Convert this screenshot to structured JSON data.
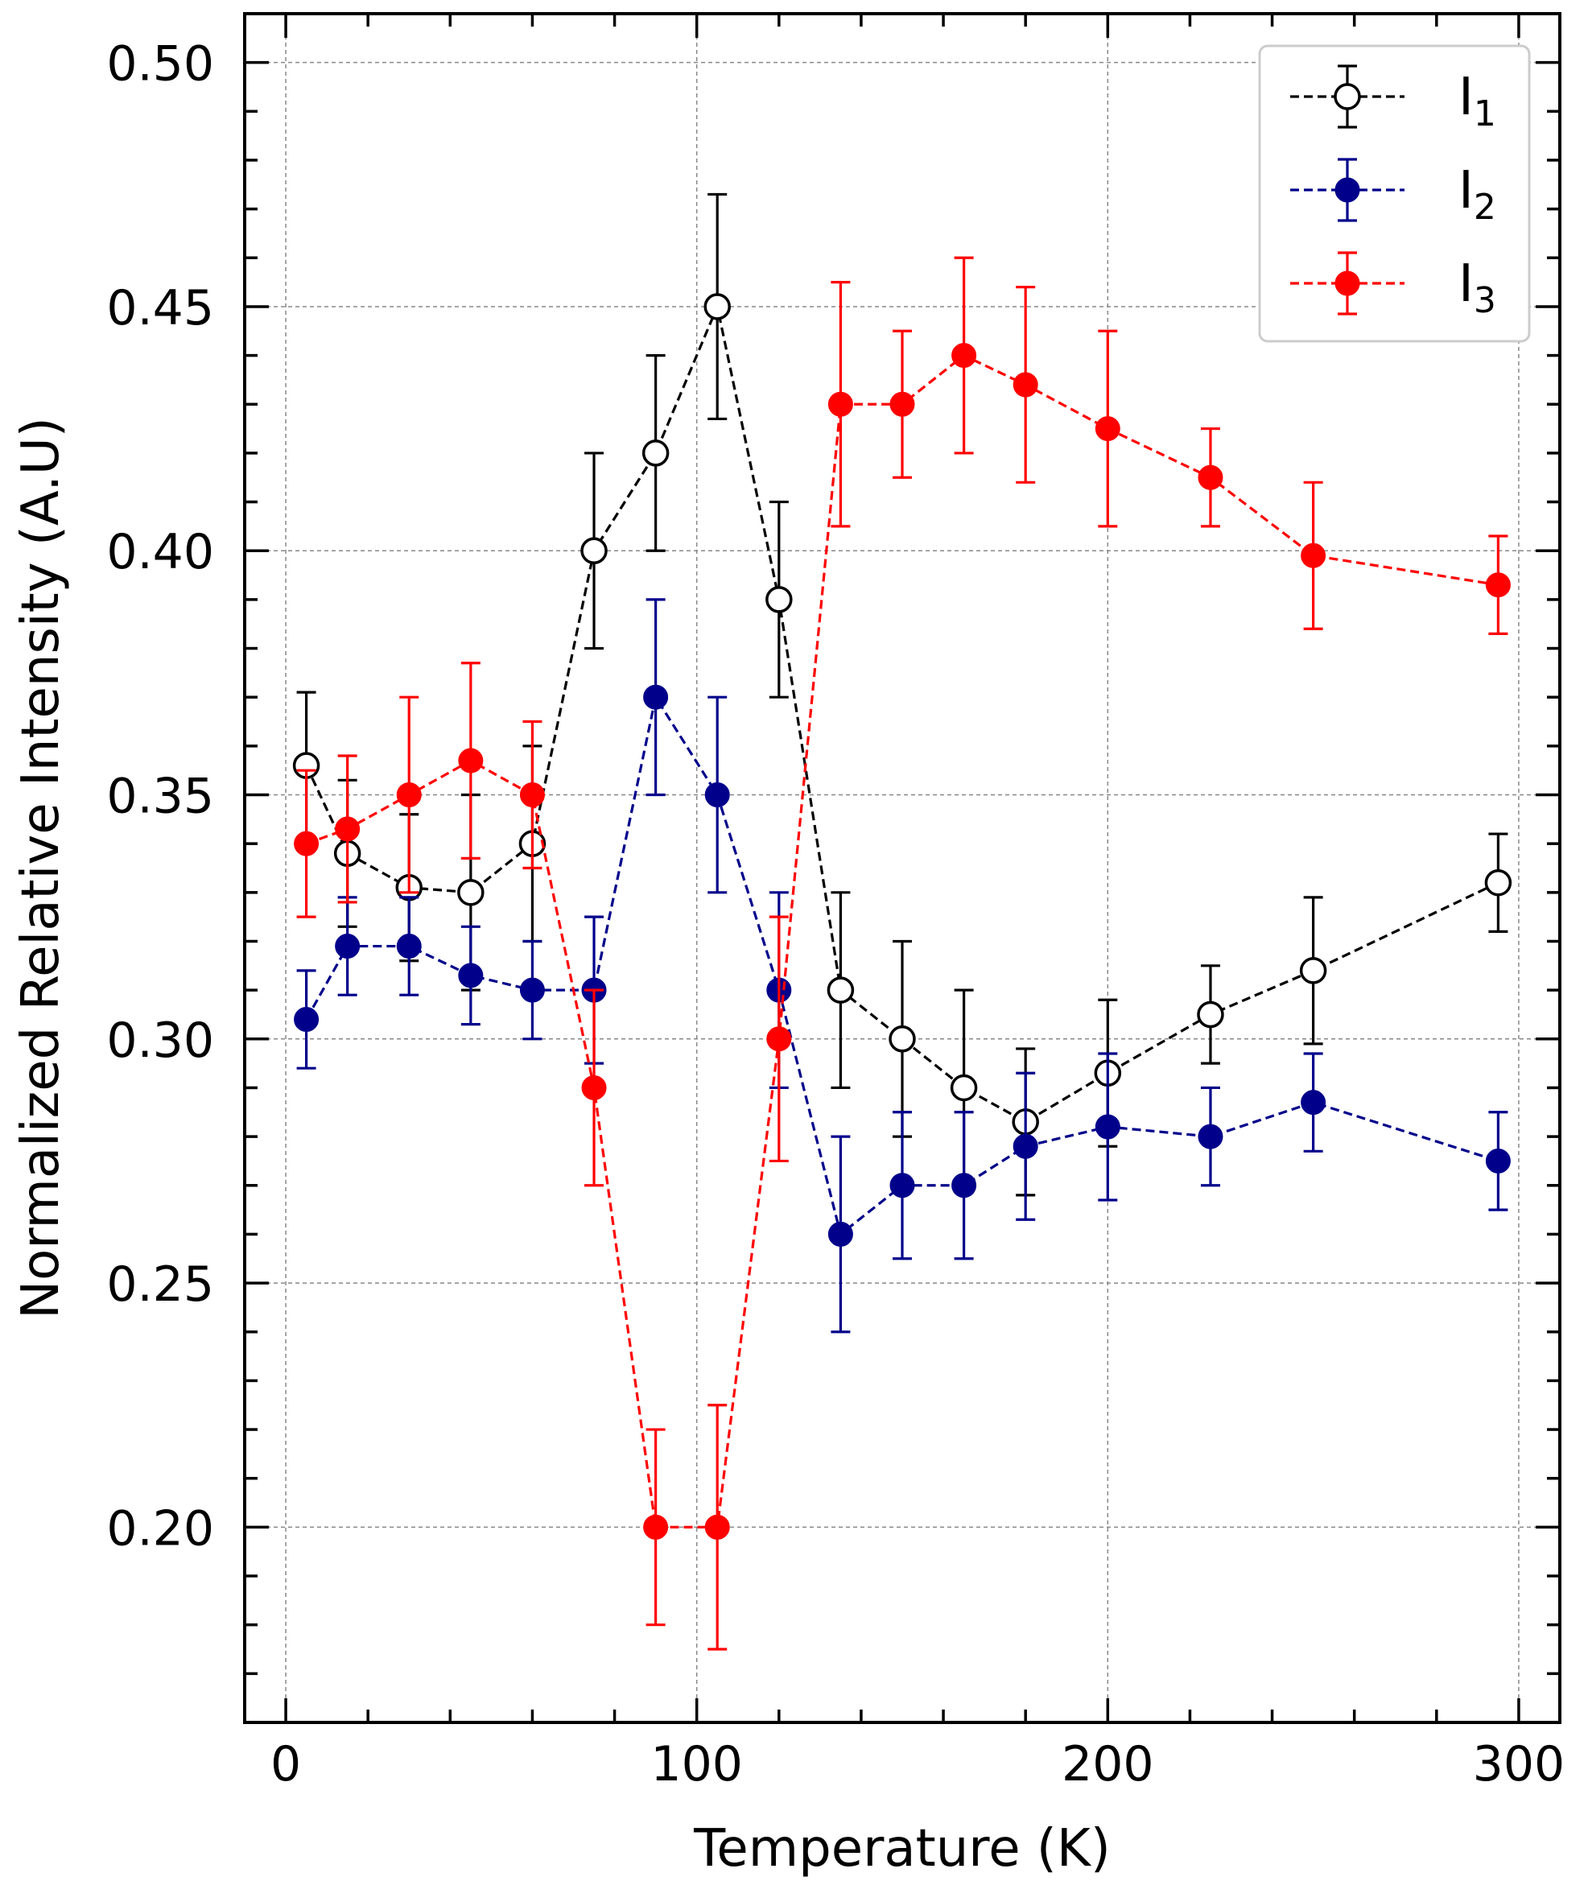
{
  "chart_data": {
    "type": "line",
    "title": "",
    "xlabel": "Temperature (K)",
    "ylabel": "Normalized Relative Intensity (A.U)",
    "xlim": [
      -10,
      310
    ],
    "ylim": [
      0.16,
      0.51
    ],
    "x_ticks": [
      0,
      100,
      200,
      300
    ],
    "x_tick_labels": [
      "0",
      "100",
      "200",
      "300"
    ],
    "x_minor_step": 20,
    "y_ticks": [
      0.2,
      0.25,
      0.3,
      0.35,
      0.4,
      0.45,
      0.5
    ],
    "y_tick_labels": [
      "0.20",
      "0.25",
      "0.30",
      "0.35",
      "0.40",
      "0.45",
      "0.50"
    ],
    "y_minor_step": 0.01,
    "grid": true,
    "legend_position": "top-right",
    "x": [
      5,
      15,
      30,
      45,
      60,
      75,
      90,
      105,
      120,
      135,
      150,
      165,
      180,
      200,
      225,
      250,
      295
    ],
    "series": [
      {
        "name": "I",
        "subscript": "1",
        "color": "#000000",
        "marker": "open-circle",
        "values": [
          0.356,
          0.338,
          0.331,
          0.33,
          0.34,
          0.4,
          0.42,
          0.45,
          0.39,
          0.31,
          0.3,
          0.29,
          0.283,
          0.293,
          0.305,
          0.314,
          0.332
        ],
        "errors": [
          0.015,
          0.015,
          0.015,
          0.02,
          0.02,
          0.02,
          0.02,
          0.023,
          0.02,
          0.02,
          0.02,
          0.02,
          0.015,
          0.015,
          0.01,
          0.015,
          0.01
        ]
      },
      {
        "name": "I",
        "subscript": "2",
        "color": "#00008b",
        "marker": "filled-circle",
        "values": [
          0.304,
          0.319,
          0.319,
          0.313,
          0.31,
          0.31,
          0.37,
          0.35,
          0.31,
          0.26,
          0.27,
          0.27,
          0.278,
          0.282,
          0.28,
          0.287,
          0.275
        ],
        "errors": [
          0.01,
          0.01,
          0.01,
          0.01,
          0.01,
          0.015,
          0.02,
          0.02,
          0.02,
          0.02,
          0.015,
          0.015,
          0.015,
          0.015,
          0.01,
          0.01,
          0.01
        ]
      },
      {
        "name": "I",
        "subscript": "3",
        "color": "#ff0000",
        "marker": "filled-circle",
        "values": [
          0.34,
          0.343,
          0.35,
          0.357,
          0.35,
          0.29,
          0.2,
          0.2,
          0.3,
          0.43,
          0.43,
          0.44,
          0.434,
          0.425,
          0.415,
          0.399,
          0.393
        ],
        "errors": [
          0.015,
          0.015,
          0.02,
          0.02,
          0.015,
          0.02,
          0.02,
          0.025,
          0.025,
          0.025,
          0.015,
          0.02,
          0.02,
          0.02,
          0.01,
          0.015,
          0.01
        ]
      }
    ]
  }
}
